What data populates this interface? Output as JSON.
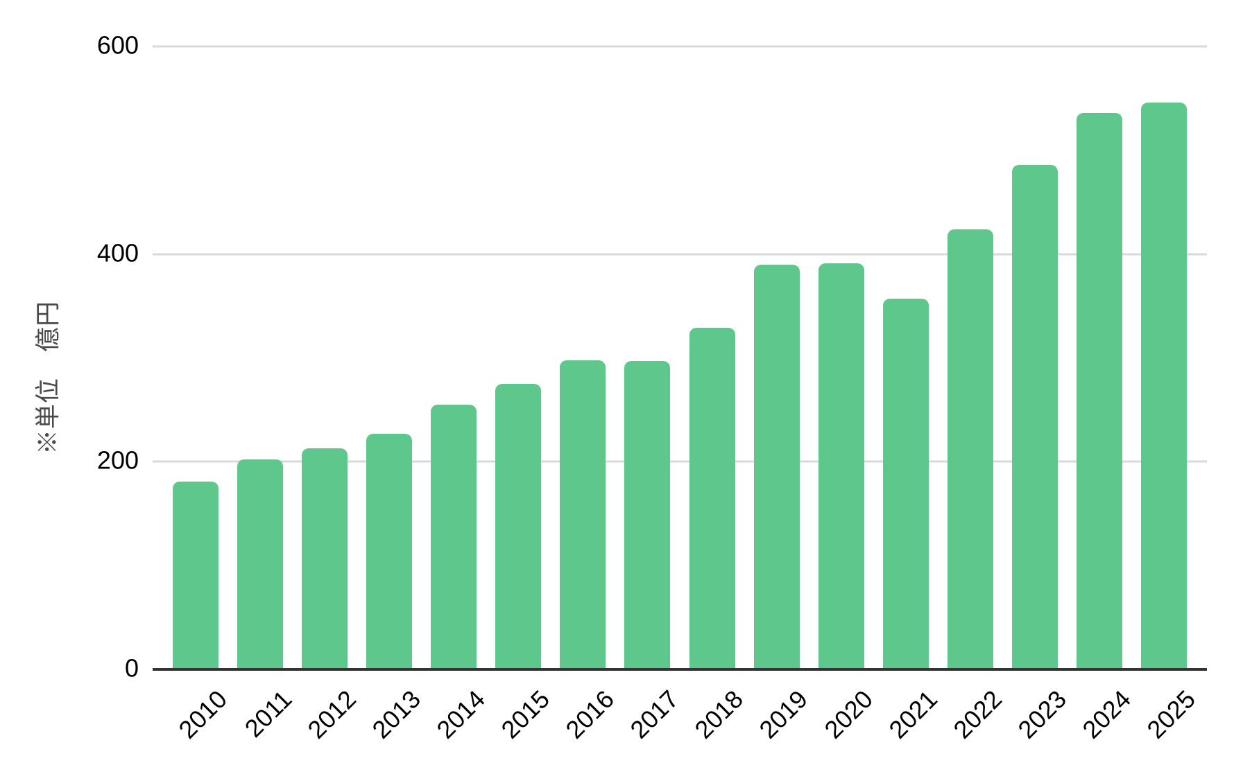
{
  "chart_data": {
    "type": "bar",
    "categories": [
      "2010",
      "2011",
      "2012",
      "2013",
      "2014",
      "2015",
      "2016",
      "2017",
      "2018",
      "2019",
      "2020",
      "2021",
      "2022",
      "2023",
      "2024",
      "2025"
    ],
    "values": [
      181,
      202,
      213,
      227,
      255,
      275,
      298,
      297,
      329,
      390,
      391,
      357,
      424,
      486,
      536,
      546
    ],
    "xlabel": "",
    "ylabel": "※単位　億円",
    "ylim": [
      0,
      600
    ],
    "yticks": [
      600,
      400,
      200,
      0
    ],
    "grid": true,
    "legend_position": "none",
    "colors": {
      "bar": "#5ec88c",
      "gridline": "#d9d9d9",
      "axis_line": "#333333",
      "tick_label": "#000000",
      "ylabel_text": "#4a4a4a",
      "background": "#ffffff"
    }
  }
}
